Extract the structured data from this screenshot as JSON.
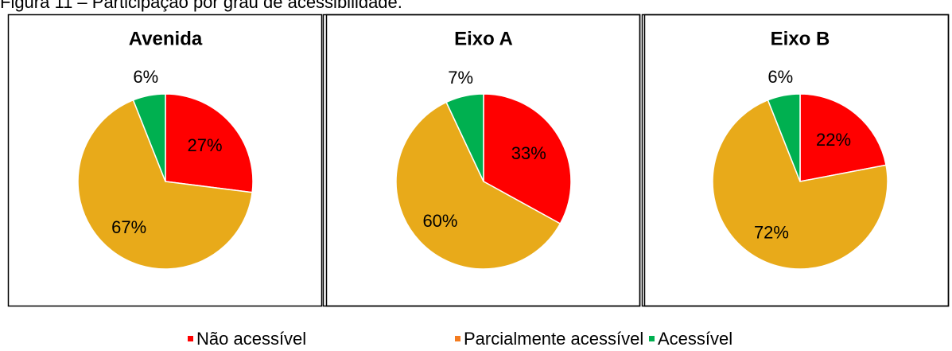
{
  "caption": "Figura 11 – Participação por grau de acessibilidade.",
  "legend_colors": [
    "#ff0000",
    "#f47c20",
    "#00b050"
  ],
  "chart_data": [
    {
      "type": "pie",
      "title": "Avenida",
      "categories": [
        "Não acessível",
        "Parcialmente acessível",
        "Acessível"
      ],
      "values": [
        27,
        67,
        6
      ],
      "value_labels": [
        "27%",
        "67%",
        "6%"
      ],
      "colors": [
        "#ff0000",
        "#e8aa1a",
        "#00b050"
      ]
    },
    {
      "type": "pie",
      "title": "Eixo A",
      "categories": [
        "Não acessível",
        "Parcialmente acessível",
        "Acessível"
      ],
      "values": [
        33,
        60,
        7
      ],
      "value_labels": [
        "33%",
        "60%",
        "7%"
      ],
      "colors": [
        "#ff0000",
        "#e8aa1a",
        "#00b050"
      ]
    },
    {
      "type": "pie",
      "title": "Eixo B",
      "categories": [
        "Não acessível",
        "Parcialmente acessível",
        "Acessível"
      ],
      "values": [
        22,
        72,
        6
      ],
      "value_labels": [
        "22%",
        "72%",
        "6%"
      ],
      "colors": [
        "#ff0000",
        "#e8aa1a",
        "#00b050"
      ]
    }
  ]
}
